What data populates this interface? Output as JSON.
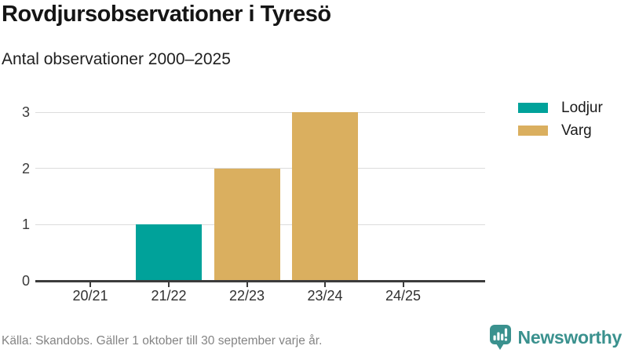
{
  "header": {
    "title": "Rovdjursobservationer i Tyresö",
    "subtitle": "Antal observationer 2000–2025"
  },
  "chart_data": {
    "type": "bar",
    "stacked": true,
    "categories": [
      "20/21",
      "21/22",
      "22/23",
      "23/24",
      "24/25"
    ],
    "series": [
      {
        "name": "Lodjur",
        "color": "#00A29A",
        "values": [
          0,
          1,
          0,
          0,
          0
        ]
      },
      {
        "name": "Varg",
        "color": "#DAAF5F",
        "values": [
          0,
          0,
          2,
          3,
          0
        ]
      }
    ],
    "title": "Rovdjursobservationer i Tyresö",
    "subtitle": "Antal observationer 2000–2025",
    "xlabel": "",
    "ylabel": "",
    "ylim": [
      0,
      3
    ],
    "yticks": [
      0,
      1,
      2,
      3
    ],
    "grid": true,
    "gridline_color": "#DCDCDC",
    "axis_color": "#3C3C3C",
    "legend_position": "right"
  },
  "legend": {
    "items": [
      {
        "label": "Lodjur",
        "color": "#00A29A"
      },
      {
        "label": "Varg",
        "color": "#DAAF5F"
      }
    ]
  },
  "footer": {
    "source": "Källa: Skandobs. Gäller 1 oktober till 30 september varje år.",
    "brand": "Newsworthy",
    "brand_color": "#3A918E"
  }
}
